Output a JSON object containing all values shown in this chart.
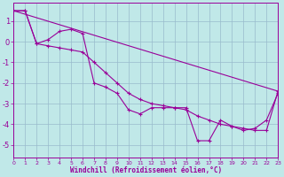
{
  "background_color": "#c0e8e8",
  "grid_color": "#99bbcc",
  "line_color": "#990099",
  "xlim": [
    0,
    23
  ],
  "ylim": [
    -5.6,
    1.9
  ],
  "yticks": [
    -5,
    -4,
    -3,
    -2,
    -1,
    0,
    1
  ],
  "xticks": [
    0,
    1,
    2,
    3,
    4,
    5,
    6,
    7,
    8,
    9,
    10,
    11,
    12,
    13,
    14,
    15,
    16,
    17,
    18,
    19,
    20,
    21,
    22,
    23
  ],
  "xlabel": "Windchill (Refroidissement éolien,°C)",
  "curve_zigzag_x": [
    0,
    1,
    2,
    3,
    4,
    5,
    6,
    7,
    8,
    9,
    10,
    11,
    12,
    13,
    14,
    15,
    16,
    17,
    18,
    19,
    20,
    21,
    22,
    23
  ],
  "curve_zigzag_y": [
    1.5,
    1.5,
    -0.1,
    0.1,
    0.5,
    0.6,
    0.4,
    -2.0,
    -2.2,
    -2.5,
    -3.3,
    -3.5,
    -3.2,
    -3.2,
    -3.2,
    -3.2,
    -4.8,
    -4.8,
    -3.8,
    -4.1,
    -4.3,
    -4.2,
    -3.8,
    -2.5
  ],
  "curve_smooth_x": [
    0,
    1,
    2,
    3,
    4,
    5,
    6,
    7,
    8,
    9,
    10,
    11,
    12,
    13,
    14,
    15,
    16,
    17,
    18,
    19,
    20,
    21,
    22,
    23
  ],
  "curve_smooth_y": [
    1.5,
    1.5,
    -0.1,
    -0.2,
    -0.3,
    -0.4,
    -0.5,
    -1.0,
    -1.5,
    -2.0,
    -2.5,
    -2.8,
    -3.0,
    -3.1,
    -3.2,
    -3.3,
    -3.6,
    -3.8,
    -4.0,
    -4.1,
    -4.2,
    -4.3,
    -4.3,
    -2.4
  ],
  "trend_x": [
    0,
    23
  ],
  "trend_y": [
    1.5,
    -2.4
  ]
}
